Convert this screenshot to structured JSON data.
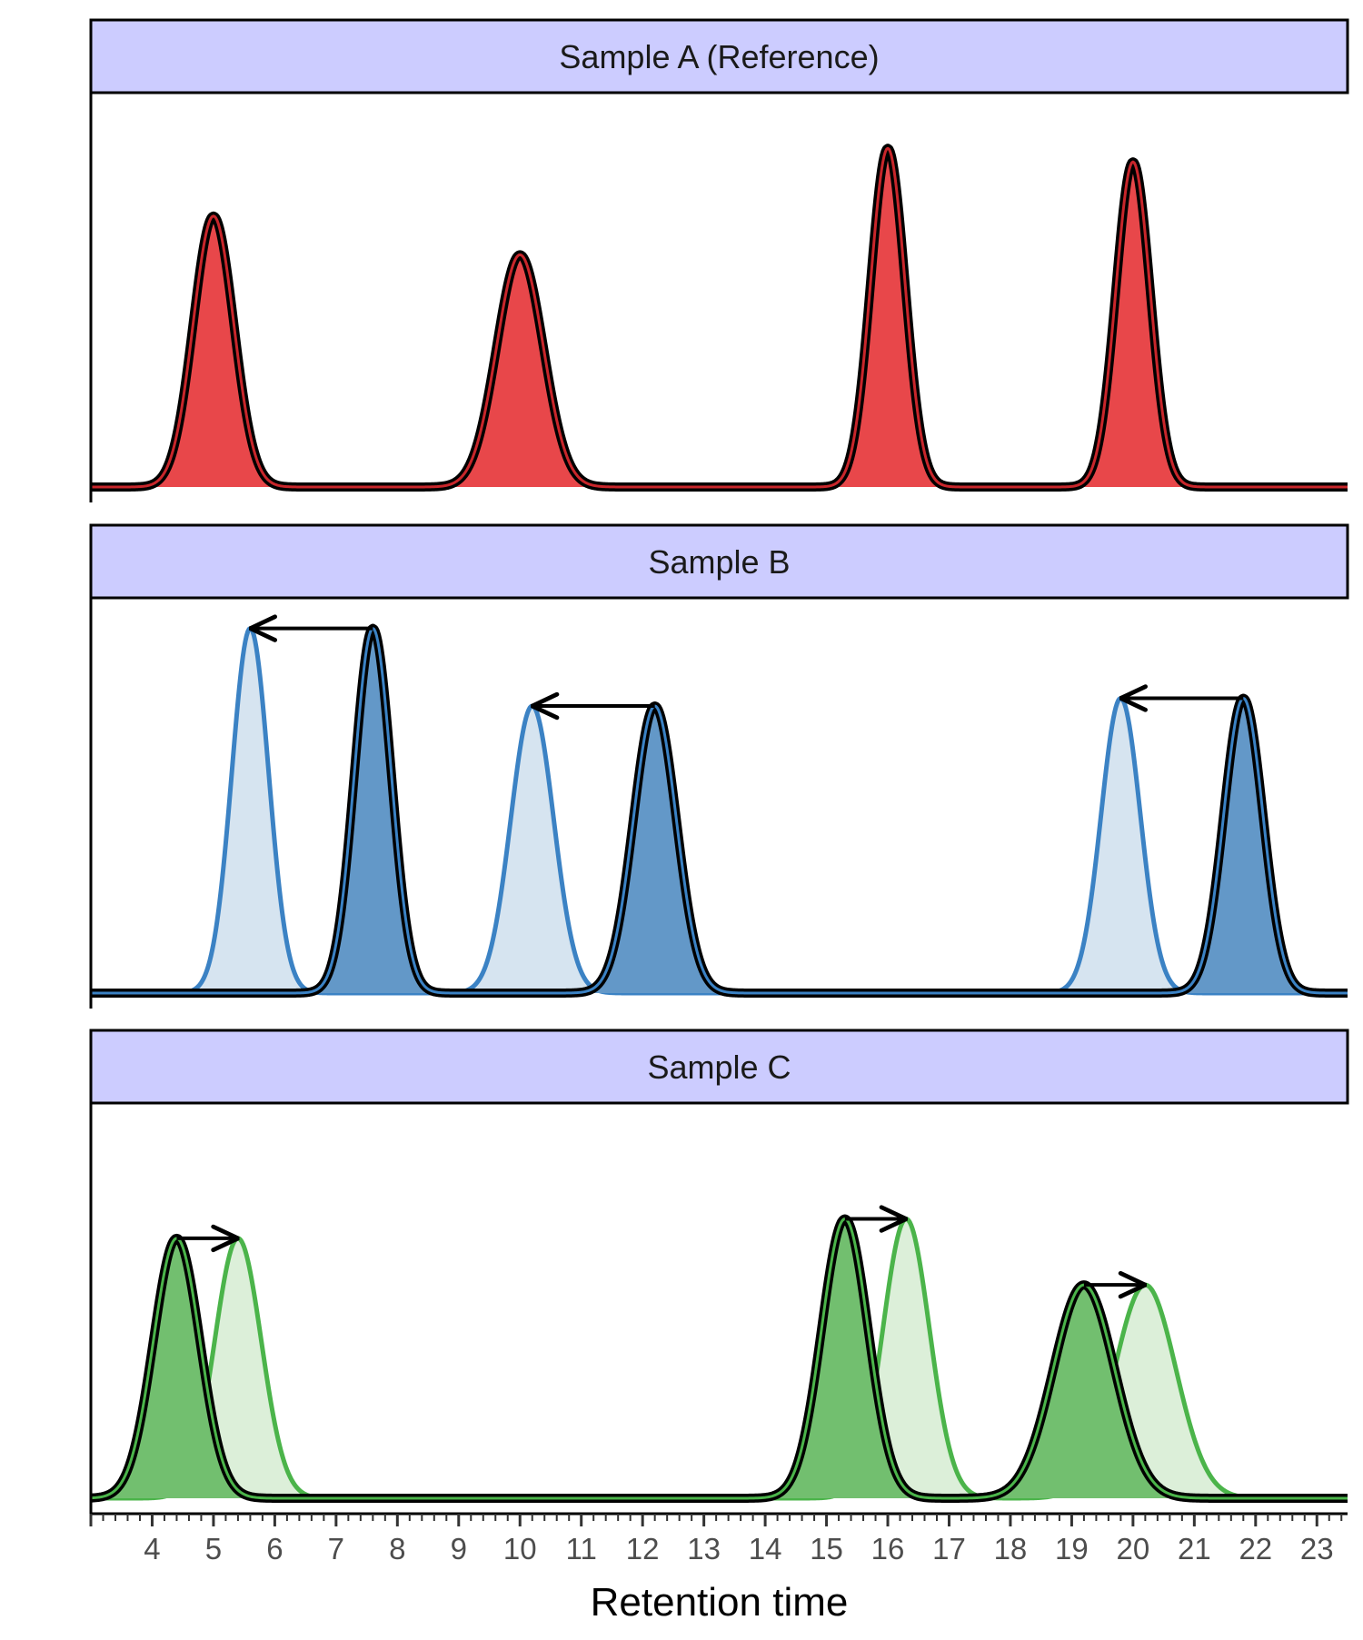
{
  "chart_data": {
    "type": "area",
    "xlabel": "Retention time",
    "xlim": [
      3,
      23.5
    ],
    "x_ticks": [
      "4",
      "5",
      "6",
      "7",
      "8",
      "9",
      "10",
      "11",
      "12",
      "13",
      "14",
      "15",
      "16",
      "17",
      "18",
      "19",
      "20",
      "21",
      "22",
      "23"
    ],
    "minor_tick_step": 0.2,
    "panels": [
      {
        "title": "Sample A (Reference)",
        "strip_color": "#ccccff",
        "ylim": [
          0,
          1
        ],
        "series": [
          {
            "role": "observed",
            "fill": "#e8474a",
            "stroke": "#c8262b",
            "peaks": [
              {
                "center": 5.0,
                "height": 0.7,
                "sigma": 0.33
              },
              {
                "center": 10.0,
                "height": 0.6,
                "sigma": 0.38
              },
              {
                "center": 16.0,
                "height": 0.875,
                "sigma": 0.28
              },
              {
                "center": 20.0,
                "height": 0.84,
                "sigma": 0.28
              }
            ]
          }
        ],
        "shifts": []
      },
      {
        "title": "Sample B",
        "strip_color": "#ccccff",
        "ylim": [
          0,
          1
        ],
        "series": [
          {
            "role": "aligned",
            "fill": "#d6e4f0",
            "stroke": "#3b82c4",
            "peaks": [
              {
                "center": 5.6,
                "height": 0.94,
                "sigma": 0.3
              },
              {
                "center": 10.2,
                "height": 0.74,
                "sigma": 0.35
              },
              {
                "center": 19.8,
                "height": 0.76,
                "sigma": 0.32
              }
            ]
          },
          {
            "role": "observed",
            "fill": "#6398c8",
            "stroke": "#3b82c4",
            "peaks": [
              {
                "center": 7.6,
                "height": 0.94,
                "sigma": 0.3
              },
              {
                "center": 12.2,
                "height": 0.74,
                "sigma": 0.35
              },
              {
                "center": 21.8,
                "height": 0.76,
                "sigma": 0.32
              }
            ]
          }
        ],
        "shifts": [
          {
            "from": 7.6,
            "to": 5.6,
            "y": 0.94
          },
          {
            "from": 12.2,
            "to": 10.2,
            "y": 0.74
          },
          {
            "from": 21.8,
            "to": 19.8,
            "y": 0.76
          }
        ]
      },
      {
        "title": "Sample C",
        "strip_color": "#ccccff",
        "ylim": [
          0,
          1
        ],
        "series": [
          {
            "role": "aligned",
            "fill": "#dcefd9",
            "stroke": "#4bb44a",
            "peaks": [
              {
                "center": 5.4,
                "height": 0.67,
                "sigma": 0.38
              },
              {
                "center": 16.3,
                "height": 0.72,
                "sigma": 0.38
              },
              {
                "center": 20.2,
                "height": 0.55,
                "sigma": 0.5
              }
            ]
          },
          {
            "role": "observed",
            "fill": "#72bf6f",
            "stroke": "#4bb44a",
            "peaks": [
              {
                "center": 4.4,
                "height": 0.67,
                "sigma": 0.38
              },
              {
                "center": 15.3,
                "height": 0.72,
                "sigma": 0.38
              },
              {
                "center": 19.2,
                "height": 0.55,
                "sigma": 0.5
              }
            ]
          }
        ],
        "shifts": [
          {
            "from": 4.4,
            "to": 5.4,
            "y": 0.67
          },
          {
            "from": 15.3,
            "to": 16.3,
            "y": 0.72
          },
          {
            "from": 19.2,
            "to": 20.2,
            "y": 0.55
          }
        ]
      }
    ]
  }
}
